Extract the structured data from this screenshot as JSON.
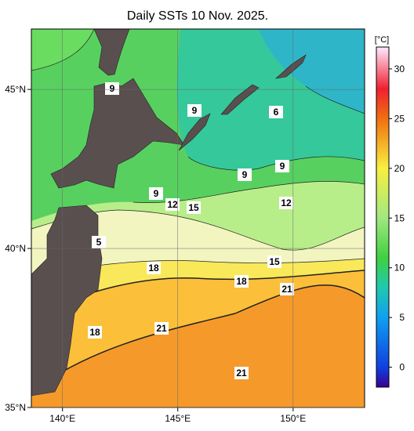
{
  "title": "Daily SSTs 10 Nov. 2025.",
  "map": {
    "lon_range": [
      138.65,
      153.1
    ],
    "lat_range": [
      35,
      46.9
    ],
    "lon_ticks": [
      {
        "value": 140,
        "label": "140°E"
      },
      {
        "value": 145,
        "label": "145°E"
      },
      {
        "value": 150,
        "label": "150°E"
      }
    ],
    "lat_ticks": [
      {
        "value": 35,
        "label": "35°N"
      },
      {
        "value": 40,
        "label": "40°N"
      },
      {
        "value": 45,
        "label": "45°N"
      }
    ],
    "contour_labels": [
      9,
      9,
      6,
      9,
      9,
      9,
      12,
      15,
      12,
      5,
      15,
      18,
      18,
      21,
      18,
      21,
      21
    ]
  },
  "colorbar": {
    "unit": "[°C]",
    "range": [
      -2,
      32.2
    ],
    "ticks": [
      0,
      5,
      10,
      15,
      20,
      25,
      30
    ],
    "colors": [
      {
        "value": -2,
        "color": "#3a0090"
      },
      {
        "value": 0,
        "color": "#1040e0"
      },
      {
        "value": 5,
        "color": "#10a0f0"
      },
      {
        "value": 8,
        "color": "#20c8b0"
      },
      {
        "value": 11,
        "color": "#40d040"
      },
      {
        "value": 15,
        "color": "#a0e880"
      },
      {
        "value": 20,
        "color": "#f8f040"
      },
      {
        "value": 25,
        "color": "#f07010"
      },
      {
        "value": 28,
        "color": "#f02030"
      },
      {
        "value": 32.2,
        "color": "#ffe8ff"
      }
    ]
  }
}
